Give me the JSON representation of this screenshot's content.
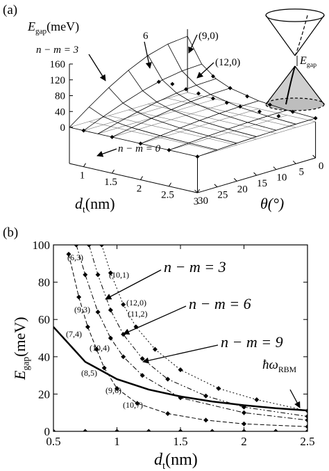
{
  "chart_data": [
    {
      "type": "surface3d",
      "panel_label": "(a)",
      "zlabel": {
        "parts": [
          "E",
          "gap",
          "(meV)"
        ]
      },
      "xlabel": {
        "parts": [
          "d",
          "t",
          "(nm)"
        ]
      },
      "ylabel": "θ(°)",
      "x": [
        0.75,
        1,
        1.25,
        1.5,
        2,
        2.5,
        3
      ],
      "y": [
        0,
        5,
        10,
        15,
        20,
        25,
        30
      ],
      "z": [
        [
          142,
          80,
          51.2,
          35.6,
          20,
          12.8,
          8.9
        ],
        [
          137,
          77.3,
          49.5,
          34.4,
          19.3,
          12.4,
          8.6
        ],
        [
          123,
          69.3,
          44.3,
          30.8,
          17.3,
          11.1,
          7.7
        ],
        [
          100,
          56.6,
          36.2,
          25.2,
          14.1,
          9,
          6.3
        ],
        [
          71,
          40,
          25.6,
          17.8,
          10,
          6.4,
          4.5
        ],
        [
          36.8,
          20.7,
          13.3,
          9.2,
          5.2,
          3.3,
          2.3
        ],
        [
          0,
          0,
          0,
          0,
          0,
          0,
          0
        ]
      ],
      "xlim": [
        0.75,
        3
      ],
      "xticks": [
        1,
        1.5,
        2,
        2.5,
        3
      ],
      "ylim": [
        0,
        30
      ],
      "yticks": [
        0,
        5,
        10,
        15,
        20,
        25,
        30
      ],
      "zlim": [
        0,
        160
      ],
      "zticks": [
        0,
        40,
        80,
        120,
        160
      ],
      "points": {
        "x": [
          1.0,
          1.1,
          1.25,
          1.4,
          1.6,
          1.8,
          2.0,
          2.3,
          2.6,
          1.2,
          1.5,
          1.8,
          2.2,
          2.6,
          3.0,
          1.0,
          1.5,
          2.0,
          2.5,
          3.0
        ],
        "y": [
          10.9,
          8.9,
          7.6,
          6.6,
          5.8,
          5.2,
          4.7,
          4.1,
          3.6,
          0,
          0,
          0,
          0,
          0,
          0,
          30,
          30,
          30,
          30,
          30
        ],
        "z": [
          67,
          59,
          47,
          38.4,
          29.8,
          23.8,
          19.3,
          14.7,
          11.6,
          55.6,
          35.6,
          24.7,
          16.5,
          11.8,
          8.9,
          0,
          0,
          0,
          0,
          0
        ]
      },
      "annotations": [
        "n − m = 3",
        "6",
        "(9,0)",
        "(12,0)",
        "n − m = 0"
      ],
      "inset_label": {
        "parts": [
          "E",
          "gap"
        ]
      }
    },
    {
      "type": "line",
      "panel_label": "(b)",
      "ylabel": {
        "parts": [
          "E",
          "gap",
          "(meV)"
        ]
      },
      "xlabel": {
        "parts": [
          "d",
          "t",
          "(nm)"
        ]
      },
      "xlim": [
        0.5,
        2.5
      ],
      "xticks": [
        0.5,
        1,
        1.5,
        2,
        2.5
      ],
      "ylim": [
        0,
        100
      ],
      "yticks": [
        0,
        20,
        40,
        60,
        80,
        100
      ],
      "series": [
        {
          "style": "solid",
          "width": 2.5,
          "markers": false,
          "x": [
            0.5,
            0.75,
            1,
            1.25,
            1.5,
            1.75,
            2,
            2.25,
            2.5
          ],
          "values": [
            56,
            37.3,
            28,
            22.4,
            18.7,
            16,
            14,
            12.4,
            11.2
          ]
        },
        {
          "style": "solid",
          "width": 1,
          "markers": true,
          "x": [
            0.5,
            0.75,
            1,
            1.25,
            1.5,
            1.75,
            2,
            2.25,
            2.5
          ],
          "values": [
            0,
            0,
            0,
            0,
            0,
            0,
            0,
            0,
            0
          ]
        },
        {
          "style": "dashed",
          "width": 1,
          "markers": true,
          "x": [
            0.62,
            0.7,
            0.77,
            0.84,
            0.9,
            1.0,
            1.16,
            1.4,
            1.7,
            2.0,
            2.5
          ],
          "values": [
            95,
            72,
            56,
            44,
            34,
            23,
            15,
            9.5,
            6,
            4,
            2.5
          ]
        },
        {
          "style": "dashdot",
          "width": 1,
          "markers": true,
          "x": [
            0.68,
            0.75,
            0.85,
            0.95,
            1.05,
            1.2,
            1.5,
            2.0,
            2.5
          ],
          "values": [
            100,
            84,
            64,
            50,
            40,
            30,
            18,
            10,
            6
          ]
        },
        {
          "style": "dashdotdot",
          "width": 1,
          "markers": true,
          "x": [
            0.78,
            0.85,
            0.95,
            1.05,
            1.2,
            1.4,
            1.7,
            2.0,
            2.5
          ],
          "values": [
            100,
            84,
            65,
            52,
            39,
            28,
            19,
            13,
            8
          ]
        },
        {
          "style": "dotted",
          "width": 1,
          "markers": true,
          "x": [
            0.88,
            0.95,
            1.05,
            1.15,
            1.3,
            1.5,
            1.8,
            2.1,
            2.5
          ],
          "values": [
            100,
            85,
            68,
            56,
            44,
            33,
            23,
            17,
            11
          ]
        }
      ],
      "annotations": [
        "n − m = 3",
        "n − m = 6",
        "n − m = 9"
      ],
      "rbm_label": {
        "parts": [
          "ħω",
          "RBM"
        ]
      },
      "point_labels": [
        "(6,3)",
        "(10,1)",
        "(12,0)",
        "(11,2)",
        "(9,3)",
        "(7,4)",
        "(10,4)",
        "(8,5)",
        "(9,6)",
        "(10,7)"
      ]
    }
  ]
}
